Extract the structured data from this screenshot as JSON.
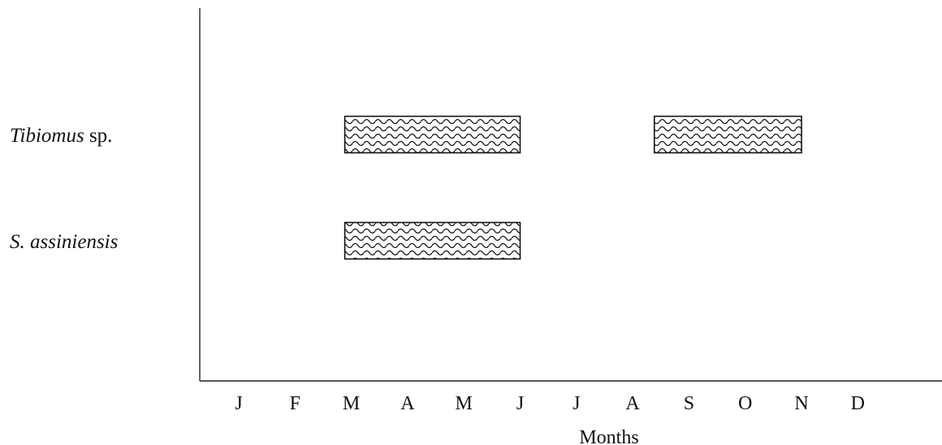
{
  "chart_data": {
    "type": "bar",
    "orientation": "horizontal",
    "xlabel": "Months",
    "ylabel": "",
    "title": "",
    "months": [
      "J",
      "F",
      "M",
      "A",
      "M",
      "J",
      "J",
      "A",
      "S",
      "O",
      "N",
      "D"
    ],
    "xlim": [
      0,
      12
    ],
    "grid": false,
    "series": [
      {
        "label_italic": "Tibiomus",
        "label_rest": " sp.",
        "periods": [
          {
            "start": "M",
            "end": "J",
            "start_value": 2,
            "end_value": 5
          },
          {
            "start": "A",
            "end": "N",
            "start_value": 7.5,
            "end_value": 10
          }
        ]
      },
      {
        "label_italic": "S. assiniensis",
        "label_rest": "",
        "periods": [
          {
            "start": "M",
            "end": "J",
            "start_value": 2,
            "end_value": 5
          }
        ]
      }
    ],
    "fill_pattern": "wavy-hatch"
  }
}
